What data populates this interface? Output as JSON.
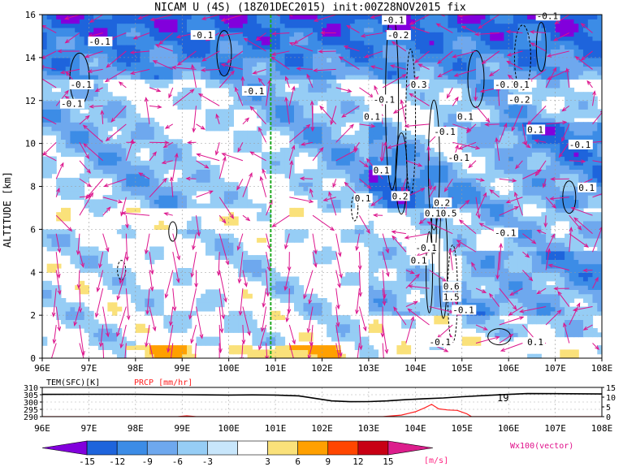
{
  "chart_data": [
    {
      "type": "heatmap",
      "title": "NICAM U (4S) (18Z01DEC2015) init:00Z28NOV2015 fix",
      "ylabel": "ALTITUDE [km]",
      "xlim": [
        96,
        108
      ],
      "ylim": [
        0,
        16
      ],
      "x_ticks": [
        "96E",
        "97E",
        "98E",
        "99E",
        "100E",
        "101E",
        "102E",
        "103E",
        "104E",
        "105E",
        "106E",
        "107E",
        "108E"
      ],
      "y_ticks": [
        "0",
        "2",
        "4",
        "6",
        "8",
        "10",
        "12",
        "14",
        "16"
      ],
      "reference_line_x": 100.9,
      "shading": "zonal wind U [m/s]",
      "contour_labels": [
        {
          "x": 97.0,
          "y": 14.6,
          "text": "-0.1"
        },
        {
          "x": 96.6,
          "y": 12.6,
          "text": "-0.1"
        },
        {
          "x": 96.4,
          "y": 11.7,
          "text": "-0.1"
        },
        {
          "x": 99.2,
          "y": 14.9,
          "text": "-0.1"
        },
        {
          "x": 100.3,
          "y": 12.3,
          "text": "-0.1"
        },
        {
          "x": 103.1,
          "y": 11.9,
          "text": "-0.1"
        },
        {
          "x": 102.9,
          "y": 11.1,
          "text": "0.1"
        },
        {
          "x": 103.3,
          "y": 15.6,
          "text": "-0.1"
        },
        {
          "x": 103.4,
          "y": 14.9,
          "text": "-0.2"
        },
        {
          "x": 103.9,
          "y": 12.6,
          "text": "0.3"
        },
        {
          "x": 104.4,
          "y": 10.4,
          "text": "-0.1"
        },
        {
          "x": 104.9,
          "y": 11.1,
          "text": "0.1"
        },
        {
          "x": 104.7,
          "y": 9.2,
          "text": "-0.1"
        },
        {
          "x": 103.1,
          "y": 8.6,
          "text": "0.1"
        },
        {
          "x": 102.7,
          "y": 7.3,
          "text": "0.1"
        },
        {
          "x": 103.5,
          "y": 7.4,
          "text": "0.2"
        },
        {
          "x": 104.4,
          "y": 7.1,
          "text": "0.2"
        },
        {
          "x": 104.2,
          "y": 6.6,
          "text": "0.10.5"
        },
        {
          "x": 105.7,
          "y": 5.7,
          "text": "-0.1"
        },
        {
          "x": 104.0,
          "y": 5.0,
          "text": "-0.1"
        },
        {
          "x": 103.9,
          "y": 4.4,
          "text": "0.1"
        },
        {
          "x": 104.6,
          "y": 3.2,
          "text": "0.6"
        },
        {
          "x": 104.6,
          "y": 2.7,
          "text": "1.5"
        },
        {
          "x": 104.8,
          "y": 2.1,
          "text": "-0.1"
        },
        {
          "x": 104.3,
          "y": 0.6,
          "text": "-0.1"
        },
        {
          "x": 105.7,
          "y": 12.6,
          "text": "-0.1"
        },
        {
          "x": 106.1,
          "y": 12.6,
          "text": "0.1"
        },
        {
          "x": 106.0,
          "y": 11.9,
          "text": "-0.2"
        },
        {
          "x": 106.4,
          "y": 10.5,
          "text": "0.1"
        },
        {
          "x": 106.6,
          "y": 15.8,
          "text": "-0.1"
        },
        {
          "x": 107.3,
          "y": 9.8,
          "text": "-0.1"
        },
        {
          "x": 107.5,
          "y": 7.8,
          "text": "0.1"
        },
        {
          "x": 106.4,
          "y": 0.6,
          "text": "0.1"
        }
      ]
    },
    {
      "type": "line",
      "labels": [
        "TEM(SFC)[K]",
        "PRCP [mm/hr]"
      ],
      "label_colors": [
        "#000000",
        "#ff2020"
      ],
      "xlim": [
        96,
        108
      ],
      "left_ticks": [
        "310",
        "305",
        "300",
        "295",
        "290"
      ],
      "right_ticks": [
        "15",
        "10",
        "5",
        "0"
      ],
      "annotation": "19",
      "series": [
        {
          "name": "TEM(SFC)[K]",
          "color": "#000000",
          "x": [
            96,
            97,
            98,
            99,
            100,
            100.5,
            101,
            101.5,
            101.9,
            102.2,
            102.6,
            103.0,
            103.4,
            103.8,
            104.2,
            104.6,
            105.0,
            105.5,
            106.0,
            106.4,
            107,
            108
          ],
          "y": [
            305.2,
            305.3,
            305.3,
            305.0,
            304.8,
            304.9,
            304.8,
            304.2,
            302.3,
            300.8,
            300.2,
            300.3,
            300.8,
            301.6,
            302.3,
            302.8,
            303.6,
            304.5,
            305.2,
            305.8,
            305.7,
            305.5
          ]
        },
        {
          "name": "PRCP [mm/hr]",
          "color": "#ff2020",
          "x": [
            96,
            98.9,
            99.1,
            99.3,
            100,
            103.3,
            103.7,
            104.0,
            104.2,
            104.35,
            104.5,
            104.7,
            104.9,
            105.1,
            105.2,
            105.4,
            108
          ],
          "y": [
            0,
            0,
            0.4,
            0,
            0,
            0,
            0.8,
            2.5,
            4.5,
            6.3,
            4.0,
            3.4,
            3.2,
            1.5,
            0.1,
            0,
            0
          ]
        }
      ]
    }
  ],
  "colorbar": {
    "unit_label": "[m/s]",
    "vector_label": "Wx100(vector)",
    "ticks": [
      "-15",
      "-12",
      "-9",
      "-6",
      "-3",
      "3",
      "6",
      "9",
      "12",
      "15"
    ],
    "colors": [
      "#8200dc",
      "#1e64dc",
      "#3c8ce6",
      "#6ea8ee",
      "#96cdf5",
      "#c8e6fb",
      "#ffffff",
      "#fae17a",
      "#ffa000",
      "#ff4600",
      "#c80014",
      "#dc1e8c"
    ]
  }
}
